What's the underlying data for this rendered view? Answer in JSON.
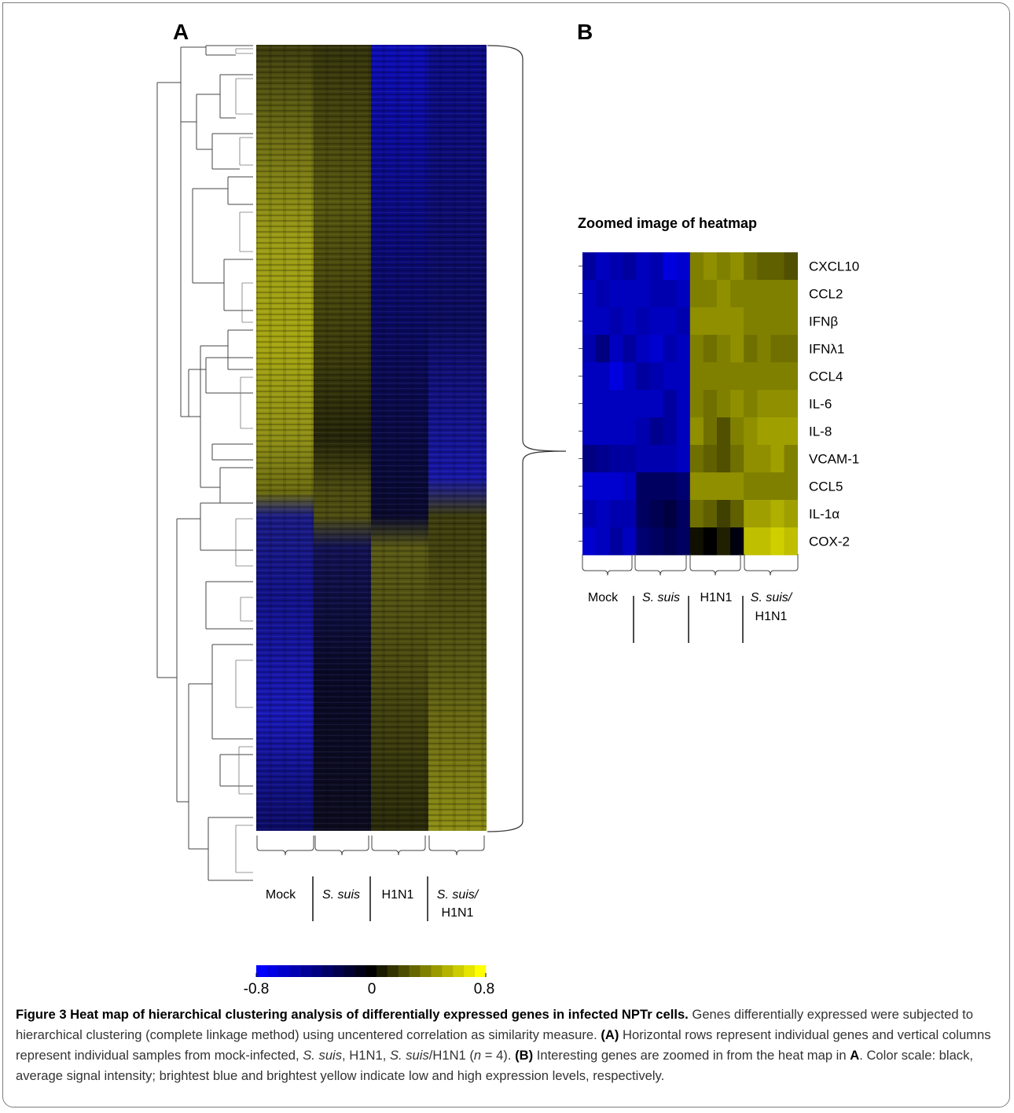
{
  "figure": {
    "panel_a_label": "A",
    "panel_b_label": "B",
    "zoom_title": "Zoomed image of heatmap",
    "groups": [
      "Mock",
      "S. suis",
      "H1N1",
      "S. suis/",
      "H1N1"
    ],
    "group_labels": {
      "mock": "Mock",
      "ssuis": "S. suis",
      "h1n1": "H1N1",
      "combo_line1": "S. suis/",
      "combo_line2": "H1N1"
    },
    "genes": [
      "CXCL10",
      "CCL2",
      "IFNβ",
      "IFNλ1",
      "CCL4",
      "IL-6",
      "IL-8",
      "VCAM-1",
      "CCL5",
      "IL-1α",
      "COX-2"
    ],
    "color_scale": {
      "min_label": "-0.8",
      "mid_label": "0",
      "max_label": "0.8",
      "low_color": "#0000ff",
      "mid_color": "#000000",
      "high_color": "#ffff00"
    }
  },
  "chart_data": {
    "type": "heatmap",
    "columns": [
      "Mock 1",
      "Mock 2",
      "Mock 3",
      "Mock 4",
      "S. suis 1",
      "S. suis 2",
      "S. suis 3",
      "S. suis 4",
      "H1N1 1",
      "H1N1 2",
      "H1N1 3",
      "H1N1 4",
      "S. suis/H1N1 1",
      "S. suis/H1N1 2",
      "S. suis/H1N1 3",
      "S. suis/H1N1 4"
    ],
    "rows": [
      "CXCL10",
      "CCL2",
      "IFNβ",
      "IFNλ1",
      "CCL4",
      "IL-6",
      "IL-8",
      "VCAM-1",
      "CCL5",
      "IL-1α",
      "COX-2"
    ],
    "values": [
      [
        -0.5,
        -0.6,
        -0.55,
        -0.5,
        -0.6,
        -0.55,
        -0.7,
        -0.65,
        0.4,
        0.45,
        0.4,
        0.45,
        0.35,
        0.3,
        0.3,
        0.25
      ],
      [
        -0.6,
        -0.55,
        -0.6,
        -0.6,
        -0.6,
        -0.55,
        -0.55,
        -0.6,
        0.4,
        0.4,
        0.45,
        0.4,
        0.4,
        0.4,
        0.4,
        0.4
      ],
      [
        -0.6,
        -0.6,
        -0.55,
        -0.6,
        -0.55,
        -0.6,
        -0.6,
        -0.55,
        0.45,
        0.45,
        0.45,
        0.45,
        0.4,
        0.4,
        0.4,
        0.4
      ],
      [
        -0.55,
        -0.4,
        -0.6,
        -0.5,
        -0.6,
        -0.65,
        -0.55,
        -0.6,
        0.4,
        0.35,
        0.4,
        0.45,
        0.35,
        0.4,
        0.35,
        0.35
      ],
      [
        -0.6,
        -0.6,
        -0.7,
        -0.6,
        -0.5,
        -0.55,
        -0.6,
        -0.6,
        0.4,
        0.4,
        0.4,
        0.4,
        0.4,
        0.4,
        0.4,
        0.4
      ],
      [
        -0.6,
        -0.6,
        -0.6,
        -0.6,
        -0.6,
        -0.6,
        -0.5,
        -0.6,
        0.4,
        0.35,
        0.4,
        0.45,
        0.4,
        0.45,
        0.45,
        0.45
      ],
      [
        -0.6,
        -0.6,
        -0.6,
        -0.6,
        -0.55,
        -0.45,
        -0.5,
        -0.6,
        0.45,
        0.35,
        0.25,
        0.4,
        0.45,
        0.5,
        0.5,
        0.5
      ],
      [
        -0.4,
        -0.45,
        -0.5,
        -0.5,
        -0.55,
        -0.55,
        -0.55,
        -0.6,
        0.35,
        0.3,
        0.25,
        0.35,
        0.45,
        0.45,
        0.5,
        0.4
      ],
      [
        -0.65,
        -0.65,
        -0.65,
        -0.6,
        -0.3,
        -0.3,
        -0.3,
        -0.35,
        0.45,
        0.45,
        0.45,
        0.45,
        0.4,
        0.4,
        0.4,
        0.4
      ],
      [
        -0.55,
        -0.6,
        -0.55,
        -0.55,
        -0.3,
        -0.25,
        -0.2,
        -0.3,
        0.35,
        0.3,
        0.2,
        0.3,
        0.5,
        0.5,
        0.55,
        0.5
      ],
      [
        -0.65,
        -0.6,
        -0.5,
        -0.6,
        -0.35,
        -0.3,
        -0.25,
        -0.3,
        0.05,
        0.0,
        0.1,
        -0.05,
        0.6,
        0.6,
        0.65,
        0.6
      ]
    ],
    "color_range": [
      -0.8,
      0.8
    ],
    "colorbar_ticks": [
      "-0.8",
      "0",
      "0.8"
    ]
  },
  "caption": {
    "title": "Figure 3 Heat map of hierarchical clustering analysis of differentially expressed genes in infected NPTr cells.",
    "sentence1": "Genes differentially expressed were subjected to hierarchical clustering (complete linkage method) using uncentered correlation as similarity measure.",
    "label_a": "(A)",
    "text_a1": "Horizontal rows represent individual genes and vertical columns represent individual samples from mock-infected,",
    "ss1": "S. suis",
    "text_a2": ", H1N1,",
    "ss2": "S. suis",
    "text_a3": "/H1N1 (",
    "n_var": "n",
    "text_a4": " = 4).",
    "label_b": "(B)",
    "text_b1": "Interesting genes are zoomed in from the heat map in",
    "ref_a": "A",
    "text_b2": ". Color scale: black, average signal intensity; brightest blue and brightest yellow indicate low and high expression levels, respectively."
  }
}
